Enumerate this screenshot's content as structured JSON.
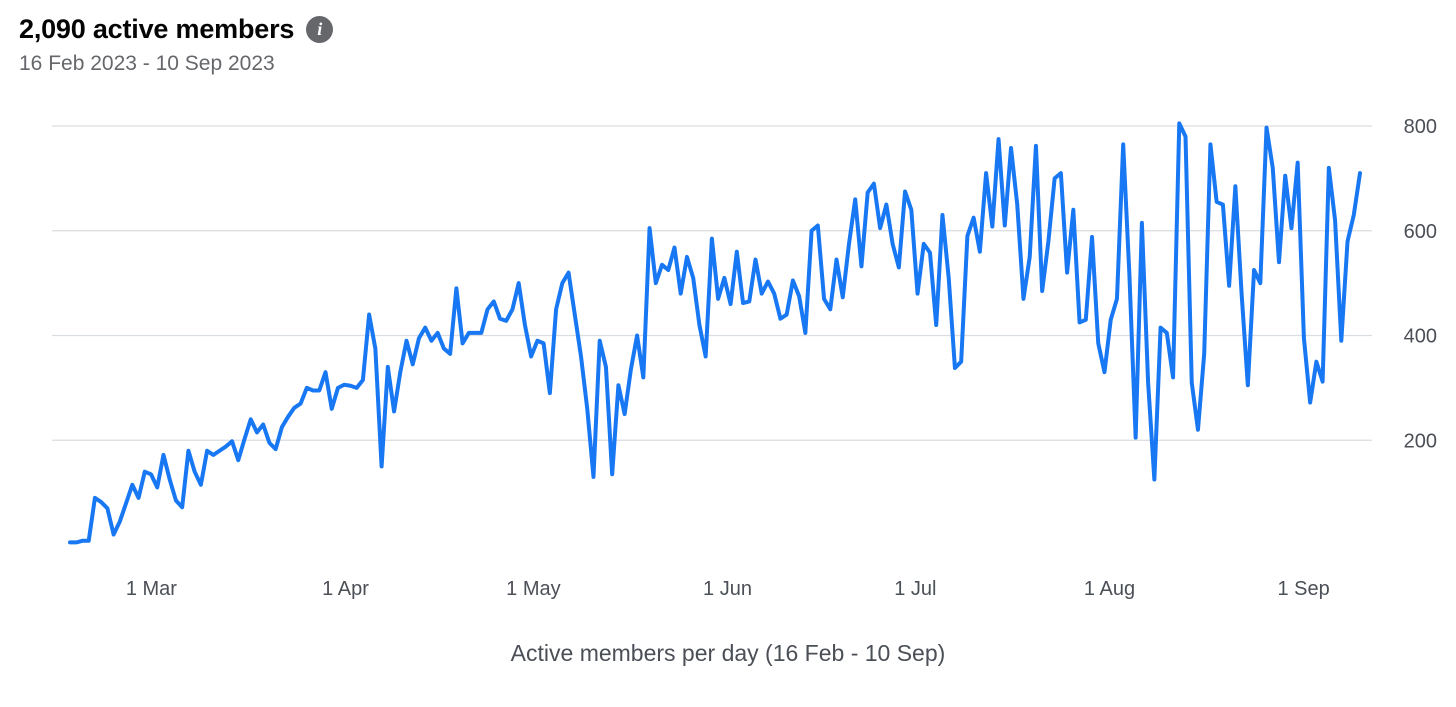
{
  "header": {
    "title": "2,090 active members",
    "info_icon": "info-icon",
    "subtitle": "16 Feb 2023 - 10 Sep 2023"
  },
  "caption": "Active members per day (16 Feb - 10 Sep)",
  "colors": {
    "line": "#1877f2",
    "grid": "#dadde1",
    "text": "#4b4f56"
  },
  "chart_data": {
    "type": "line",
    "title": "2,090 active members",
    "subtitle": "16 Feb 2023 - 10 Sep 2023",
    "xlabel": "Active members per day (16 Feb - 10 Sep)",
    "ylabel": "",
    "x_start": "2023-02-16",
    "x_end": "2023-09-10",
    "ylim": [
      0,
      800
    ],
    "y_ticks": [
      200,
      400,
      600,
      800
    ],
    "y_axis_side": "right",
    "grid": true,
    "legend": "none",
    "x_ticks": [
      {
        "label": "1 Mar",
        "date": "2023-03-01"
      },
      {
        "label": "1 Apr",
        "date": "2023-04-01"
      },
      {
        "label": "1 May",
        "date": "2023-05-01"
      },
      {
        "label": "1 Jun",
        "date": "2023-06-01"
      },
      {
        "label": "1 Jul",
        "date": "2023-07-01"
      },
      {
        "label": "1 Aug",
        "date": "2023-08-01"
      },
      {
        "label": "1 Sep",
        "date": "2023-09-01"
      }
    ],
    "series": [
      {
        "values": [
          5,
          5,
          8,
          8,
          90,
          82,
          70,
          20,
          45,
          80,
          115,
          90,
          140,
          135,
          110,
          172,
          125,
          85,
          72,
          180,
          140,
          115,
          180,
          172,
          180,
          188,
          198,
          162,
          202,
          240,
          215,
          230,
          195,
          183,
          225,
          245,
          262,
          270,
          300,
          295,
          295,
          330,
          260,
          300,
          306,
          304,
          300,
          315,
          440,
          375,
          150,
          340,
          255,
          330,
          390,
          345,
          395,
          415,
          390,
          405,
          375,
          365,
          490,
          385,
          405,
          405,
          405,
          450,
          465,
          432,
          428,
          450,
          500,
          420,
          360,
          390,
          385,
          290,
          450,
          500,
          520,
          440,
          360,
          260,
          130,
          390,
          340,
          135,
          305,
          250,
          335,
          400,
          320,
          605,
          500,
          535,
          525,
          568,
          480,
          550,
          510,
          420,
          360,
          585,
          470,
          510,
          460,
          560,
          462,
          465,
          545,
          480,
          503,
          480,
          432,
          440,
          505,
          475,
          405,
          600,
          610,
          470,
          450,
          545,
          473,
          575,
          660,
          532,
          673,
          690,
          605,
          650,
          575,
          530,
          675,
          640,
          480,
          575,
          558,
          420,
          630,
          510,
          338,
          350,
          590,
          625,
          560,
          710,
          608,
          775,
          610,
          758,
          650,
          470,
          550,
          762,
          485,
          580,
          700,
          710,
          520,
          640,
          425,
          430,
          588,
          385,
          330,
          430,
          470,
          765,
          515,
          205,
          615,
          310,
          125,
          415,
          405,
          320,
          805,
          780,
          310,
          220,
          365,
          765,
          655,
          650,
          495,
          685,
          480,
          305,
          525,
          500,
          797,
          720,
          540,
          705,
          605,
          730,
          395,
          272,
          350,
          312,
          720,
          620,
          390,
          580,
          630,
          710
        ]
      }
    ]
  }
}
